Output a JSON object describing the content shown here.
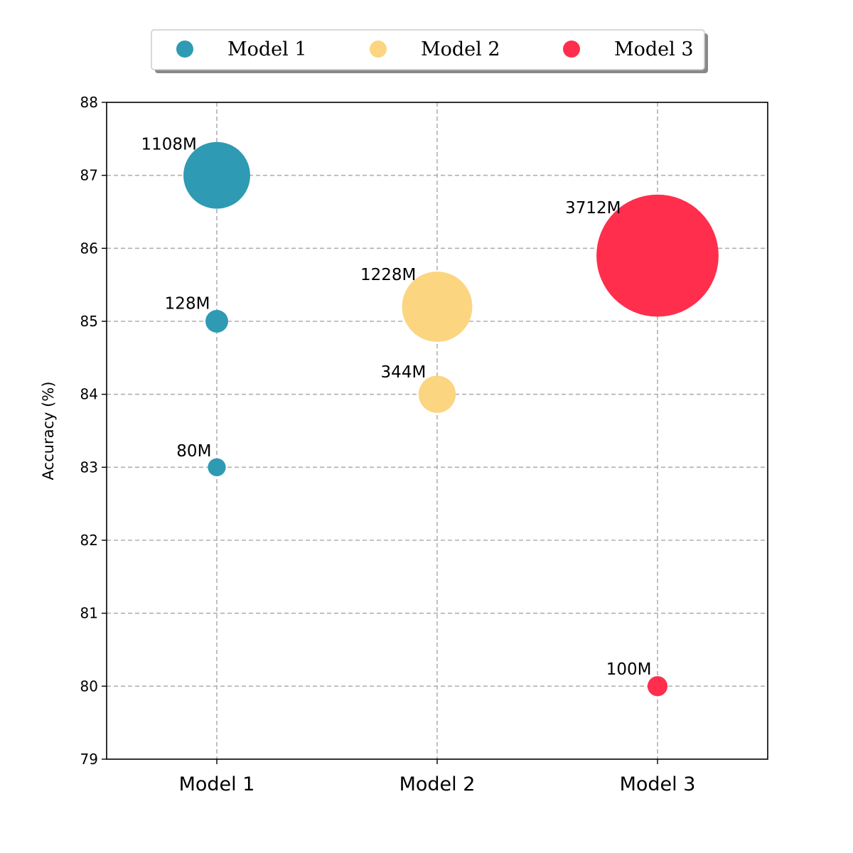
{
  "chart_data": {
    "type": "scatter",
    "title": "",
    "xlabel": "",
    "ylabel": "Accuracy (%)",
    "categories": [
      "Model 1",
      "Model 2",
      "Model 3"
    ],
    "ylim": [
      79,
      88
    ],
    "yticks": [
      79,
      80,
      81,
      82,
      83,
      84,
      85,
      86,
      87,
      88
    ],
    "grid": true,
    "legend_placement": "top-center",
    "series": [
      {
        "name": "Model 1",
        "color": "#2E9AB3",
        "points": [
          {
            "x": "Model 1",
            "y": 87,
            "size": 1108,
            "label": "1108M"
          },
          {
            "x": "Model 1",
            "y": 85,
            "size": 128,
            "label": "128M"
          },
          {
            "x": "Model 1",
            "y": 83,
            "size": 80,
            "label": "80M"
          }
        ]
      },
      {
        "name": "Model 2",
        "color": "#FBD580",
        "points": [
          {
            "x": "Model 2",
            "y": 85.2,
            "size": 1228,
            "label": "1228M"
          },
          {
            "x": "Model 2",
            "y": 84,
            "size": 344,
            "label": "344M"
          }
        ]
      },
      {
        "name": "Model 3",
        "color": "#FF2E4C",
        "points": [
          {
            "x": "Model 3",
            "y": 85.9,
            "size": 3712,
            "label": "3712M"
          },
          {
            "x": "Model 3",
            "y": 80,
            "size": 100,
            "label": "100M"
          }
        ]
      }
    ]
  }
}
